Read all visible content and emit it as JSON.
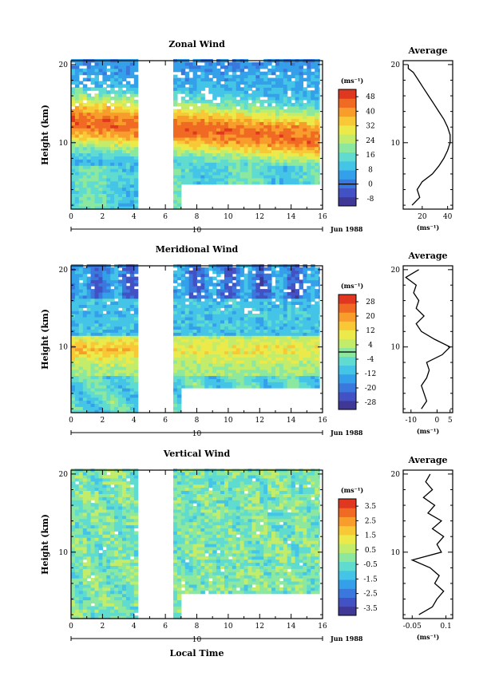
{
  "figure": {
    "xlabel": "Local Time",
    "date_marker": "10",
    "date_label": "Jun 1988",
    "colorbar_unit": "(ms⁻¹)",
    "profile_xlabel": "(ms⁻¹)"
  },
  "chart_data": [
    {
      "type": "heatmap",
      "title": "Zonal Wind",
      "ylabel": "Height (km)",
      "x_ticks": [
        0,
        2,
        4,
        6,
        8,
        10,
        12,
        14,
        16
      ],
      "y_ticks": [
        10,
        20
      ],
      "xlim": [
        0,
        16
      ],
      "ylim": [
        1.5,
        20.5
      ],
      "data_gap_x": [
        4.2,
        6.4
      ],
      "missing_upper_region": {
        "x": [
          6.8,
          15.8
        ],
        "y_max": 4.5
      },
      "colorbar": {
        "ticks": [
          48,
          40,
          32,
          24,
          16,
          8,
          0,
          -8
        ],
        "range": [
          -12,
          52
        ],
        "colors": [
          "#403896",
          "#4252c4",
          "#3a78de",
          "#35a0ea",
          "#44c4e6",
          "#60dbd0",
          "#8ce89e",
          "#c2ec6a",
          "#ecea4a",
          "#f8c836",
          "#f89c2c",
          "#f06a24",
          "#e03820"
        ]
      },
      "profile": {
        "title": "Average",
        "x_ticks": [
          20,
          40
        ],
        "xlim": [
          5,
          44
        ],
        "heights": [
          2,
          3,
          4,
          5,
          6,
          7,
          8,
          9,
          10,
          11,
          12,
          13,
          14,
          15,
          16,
          17,
          18,
          19,
          19.5,
          20
        ],
        "values": [
          12,
          18,
          16,
          20,
          28,
          33,
          37,
          40,
          42,
          42,
          40,
          37,
          33,
          29,
          25,
          21,
          17,
          13,
          9,
          9
        ]
      }
    },
    {
      "type": "heatmap",
      "title": "Meridional Wind",
      "ylabel": "Height (km)",
      "x_ticks": [
        0,
        2,
        4,
        6,
        8,
        10,
        12,
        14,
        16
      ],
      "y_ticks": [
        10,
        20
      ],
      "xlim": [
        0,
        16
      ],
      "ylim": [
        1.5,
        20.5
      ],
      "data_gap_x": [
        4.2,
        6.4
      ],
      "missing_upper_region": {
        "x": [
          6.8,
          15.8
        ],
        "y_max": 4.5
      },
      "colorbar": {
        "ticks": [
          28,
          20,
          12,
          4,
          -4,
          -12,
          -20,
          -28
        ],
        "range": [
          -32,
          32
        ],
        "colors": [
          "#403896",
          "#4252c4",
          "#3a78de",
          "#35a0ea",
          "#44c4e6",
          "#60dbd0",
          "#8ce89e",
          "#c2ec6a",
          "#ecea4a",
          "#f8c836",
          "#f89c2c",
          "#f06a24",
          "#e03820"
        ]
      },
      "profile": {
        "title": "Average",
        "x_ticks": [
          -10,
          0,
          5
        ],
        "xlim": [
          -13,
          6
        ],
        "heights": [
          2,
          3,
          4,
          5,
          6,
          7,
          8,
          9,
          10,
          11,
          12,
          13,
          14,
          15,
          16,
          17,
          18,
          19,
          20
        ],
        "values": [
          -6,
          -4,
          -5,
          -6,
          -4,
          -3,
          -4,
          2,
          5,
          -1,
          -6,
          -8,
          -5,
          -8,
          -7,
          -9,
          -8,
          -12,
          -7
        ]
      }
    },
    {
      "type": "heatmap",
      "title": "Vertical Wind",
      "ylabel": "Height (km)",
      "xlabel": "Local Time",
      "x_ticks": [
        0,
        2,
        4,
        6,
        8,
        10,
        12,
        14,
        16
      ],
      "y_ticks": [
        10,
        20
      ],
      "xlim": [
        0,
        16
      ],
      "ylim": [
        1.5,
        20.5
      ],
      "data_gap_x": [
        4.2,
        6.4
      ],
      "missing_upper_region": {
        "x": [
          6.8,
          15.8
        ],
        "y_max": 4.5
      },
      "colorbar": {
        "ticks": [
          3.5,
          2.5,
          1.5,
          0.5,
          -0.5,
          -1.5,
          -2.5,
          -3.5
        ],
        "range": [
          -4,
          4
        ],
        "colors": [
          "#403896",
          "#4252c4",
          "#3a78de",
          "#35a0ea",
          "#44c4e6",
          "#60dbd0",
          "#8ce89e",
          "#c2ec6a",
          "#ecea4a",
          "#f8c836",
          "#f89c2c",
          "#f06a24",
          "#e03820"
        ]
      },
      "profile": {
        "title": "Average",
        "x_ticks": [
          -0.05,
          0.1
        ],
        "xlim": [
          -0.09,
          0.13
        ],
        "heights": [
          2,
          3,
          4,
          5,
          6,
          7,
          8,
          9,
          10,
          11,
          12,
          13,
          14,
          15,
          16,
          17,
          18,
          19,
          20
        ],
        "values": [
          -0.02,
          0.04,
          0.06,
          0.09,
          0.05,
          0.07,
          0.03,
          -0.05,
          0.08,
          0.06,
          0.09,
          0.04,
          0.08,
          0.02,
          0.05,
          0.0,
          0.04,
          0.01,
          0.03
        ]
      }
    }
  ]
}
